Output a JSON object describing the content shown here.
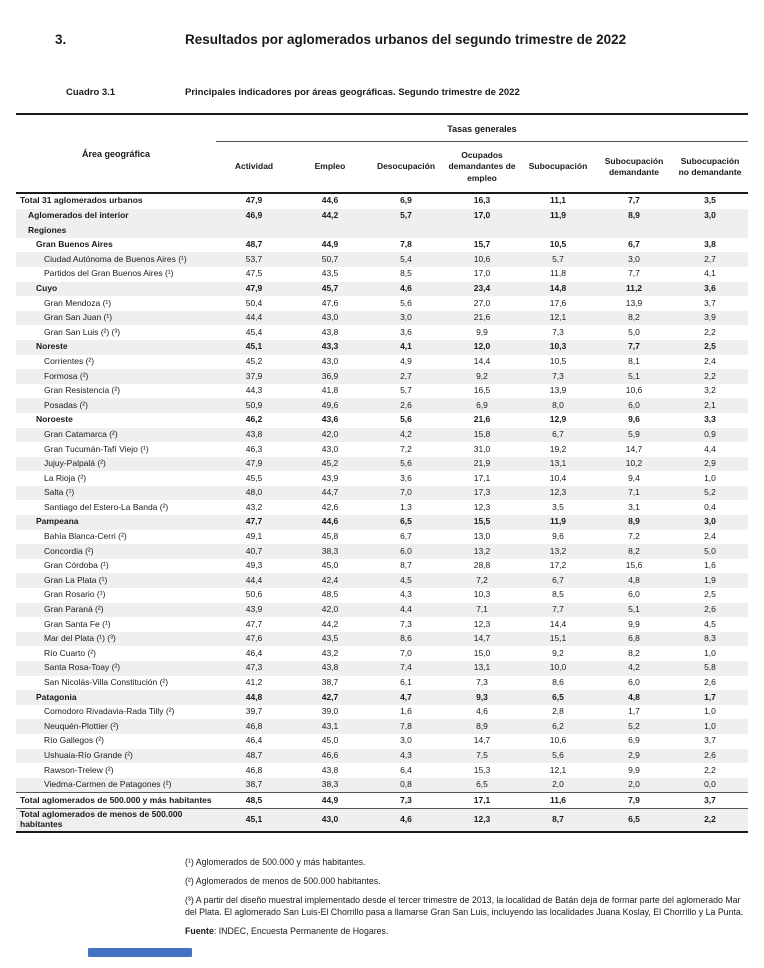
{
  "page": {
    "section_number": "3.",
    "title": "Resultados por aglomerados urbanos del segundo trimestre de 2022",
    "table_label": "Cuadro 3.1",
    "table_title": "Principales indicadores por áreas geográficas. Segundo trimestre de 2022"
  },
  "table": {
    "area_header": "Área geográfica",
    "group_header": "Tasas generales",
    "columns": [
      "Actividad",
      "Empleo",
      "Desocupación",
      "Ocupados demandantes de empleo",
      "Subocupación",
      "Subocupación demandante",
      "Subocupación no demandante"
    ],
    "rows": [
      {
        "label": "Total 31 aglomerados urbanos",
        "level": 0,
        "bold": true,
        "values": [
          "47,9",
          "44,6",
          "6,9",
          "16,3",
          "11,1",
          "7,7",
          "3,5"
        ]
      },
      {
        "label": "Aglomerados del interior",
        "level": 1,
        "bold": true,
        "values": [
          "46,9",
          "44,2",
          "5,7",
          "17,0",
          "11,9",
          "8,9",
          "3,0"
        ]
      },
      {
        "label": "Regiones",
        "level": 1,
        "bold": true,
        "values": [
          "",
          "",
          "",
          "",
          "",
          "",
          ""
        ]
      },
      {
        "label": "Gran Buenos Aires",
        "level": 2,
        "bold": true,
        "values": [
          "48,7",
          "44,9",
          "7,8",
          "15,7",
          "10,5",
          "6,7",
          "3,8"
        ]
      },
      {
        "label": "Ciudad Autónoma de Buenos Aires (¹)",
        "level": 3,
        "bold": false,
        "values": [
          "53,7",
          "50,7",
          "5,4",
          "10,6",
          "5,7",
          "3,0",
          "2,7"
        ]
      },
      {
        "label": "Partidos del Gran Buenos Aires (¹)",
        "level": 3,
        "bold": false,
        "values": [
          "47,5",
          "43,5",
          "8,5",
          "17,0",
          "11,8",
          "7,7",
          "4,1"
        ]
      },
      {
        "label": "Cuyo",
        "level": 2,
        "bold": true,
        "values": [
          "47,9",
          "45,7",
          "4,6",
          "23,4",
          "14,8",
          "11,2",
          "3,6"
        ]
      },
      {
        "label": "Gran Mendoza (¹)",
        "level": 3,
        "bold": false,
        "values": [
          "50,4",
          "47,6",
          "5,6",
          "27,0",
          "17,6",
          "13,9",
          "3,7"
        ]
      },
      {
        "label": "Gran San Juan (¹)",
        "level": 3,
        "bold": false,
        "values": [
          "44,4",
          "43,0",
          "3,0",
          "21,6",
          "12,1",
          "8,2",
          "3,9"
        ]
      },
      {
        "label": "Gran San Luis (²) (³)",
        "level": 3,
        "bold": false,
        "values": [
          "45,4",
          "43,8",
          "3,6",
          "9,9",
          "7,3",
          "5,0",
          "2,2"
        ]
      },
      {
        "label": "Noreste",
        "level": 2,
        "bold": true,
        "values": [
          "45,1",
          "43,3",
          "4,1",
          "12,0",
          "10,3",
          "7,7",
          "2,5"
        ]
      },
      {
        "label": "Corrientes (²)",
        "level": 3,
        "bold": false,
        "values": [
          "45,2",
          "43,0",
          "4,9",
          "14,4",
          "10,5",
          "8,1",
          "2,4"
        ]
      },
      {
        "label": "Formosa (²)",
        "level": 3,
        "bold": false,
        "values": [
          "37,9",
          "36,9",
          "2,7",
          "9,2",
          "7,3",
          "5,1",
          "2,2"
        ]
      },
      {
        "label": "Gran Resistencia (²)",
        "level": 3,
        "bold": false,
        "values": [
          "44,3",
          "41,8",
          "5,7",
          "16,5",
          "13,9",
          "10,6",
          "3,2"
        ]
      },
      {
        "label": "Posadas (²)",
        "level": 3,
        "bold": false,
        "values": [
          "50,9",
          "49,6",
          "2,6",
          "6,9",
          "8,0",
          "6,0",
          "2,1"
        ]
      },
      {
        "label": "Noroeste",
        "level": 2,
        "bold": true,
        "values": [
          "46,2",
          "43,6",
          "5,6",
          "21,6",
          "12,9",
          "9,6",
          "3,3"
        ]
      },
      {
        "label": "Gran Catamarca (²)",
        "level": 3,
        "bold": false,
        "values": [
          "43,8",
          "42,0",
          "4,2",
          "15,8",
          "6,7",
          "5,9",
          "0,9"
        ]
      },
      {
        "label": "Gran Tucumán-Tafí Viejo (¹)",
        "level": 3,
        "bold": false,
        "values": [
          "46,3",
          "43,0",
          "7,2",
          "31,0",
          "19,2",
          "14,7",
          "4,4"
        ]
      },
      {
        "label": "Jujuy-Palpalá (²)",
        "level": 3,
        "bold": false,
        "values": [
          "47,9",
          "45,2",
          "5,6",
          "21,9",
          "13,1",
          "10,2",
          "2,9"
        ]
      },
      {
        "label": "La Rioja (²)",
        "level": 3,
        "bold": false,
        "values": [
          "45,5",
          "43,9",
          "3,6",
          "17,1",
          "10,4",
          "9,4",
          "1,0"
        ]
      },
      {
        "label": "Salta (¹)",
        "level": 3,
        "bold": false,
        "values": [
          "48,0",
          "44,7",
          "7,0",
          "17,3",
          "12,3",
          "7,1",
          "5,2"
        ]
      },
      {
        "label": "Santiago del Estero-La Banda (²)",
        "level": 3,
        "bold": false,
        "values": [
          "43,2",
          "42,6",
          "1,3",
          "12,3",
          "3,5",
          "3,1",
          "0,4"
        ]
      },
      {
        "label": "Pampeana",
        "level": 2,
        "bold": true,
        "values": [
          "47,7",
          "44,6",
          "6,5",
          "15,5",
          "11,9",
          "8,9",
          "3,0"
        ]
      },
      {
        "label": "Bahía Blanca-Cerri (²)",
        "level": 3,
        "bold": false,
        "values": [
          "49,1",
          "45,8",
          "6,7",
          "13,0",
          "9,6",
          "7,2",
          "2,4"
        ]
      },
      {
        "label": "Concordia (²)",
        "level": 3,
        "bold": false,
        "values": [
          "40,7",
          "38,3",
          "6,0",
          "13,2",
          "13,2",
          "8,2",
          "5,0"
        ]
      },
      {
        "label": "Gran Córdoba (¹)",
        "level": 3,
        "bold": false,
        "values": [
          "49,3",
          "45,0",
          "8,7",
          "28,8",
          "17,2",
          "15,6",
          "1,6"
        ]
      },
      {
        "label": "Gran La Plata (¹)",
        "level": 3,
        "bold": false,
        "values": [
          "44,4",
          "42,4",
          "4,5",
          "7,2",
          "6,7",
          "4,8",
          "1,9"
        ]
      },
      {
        "label": "Gran Rosario (¹)",
        "level": 3,
        "bold": false,
        "values": [
          "50,6",
          "48,5",
          "4,3",
          "10,3",
          "8,5",
          "6,0",
          "2,5"
        ]
      },
      {
        "label": "Gran Paraná (²)",
        "level": 3,
        "bold": false,
        "values": [
          "43,9",
          "42,0",
          "4,4",
          "7,1",
          "7,7",
          "5,1",
          "2,6"
        ]
      },
      {
        "label": "Gran Santa Fe (¹)",
        "level": 3,
        "bold": false,
        "values": [
          "47,7",
          "44,2",
          "7,3",
          "12,3",
          "14,4",
          "9,9",
          "4,5"
        ]
      },
      {
        "label": "Mar del Plata (¹) (³)",
        "level": 3,
        "bold": false,
        "values": [
          "47,6",
          "43,5",
          "8,6",
          "14,7",
          "15,1",
          "6,8",
          "8,3"
        ]
      },
      {
        "label": "Río Cuarto (²)",
        "level": 3,
        "bold": false,
        "values": [
          "46,4",
          "43,2",
          "7,0",
          "15,0",
          "9,2",
          "8,2",
          "1,0"
        ]
      },
      {
        "label": "Santa Rosa-Toay (²)",
        "level": 3,
        "bold": false,
        "values": [
          "47,3",
          "43,8",
          "7,4",
          "13,1",
          "10,0",
          "4,2",
          "5,8"
        ]
      },
      {
        "label": "San Nicolás-Villa Constitución (²)",
        "level": 3,
        "bold": false,
        "values": [
          "41,2",
          "38,7",
          "6,1",
          "7,3",
          "8,6",
          "6,0",
          "2,6"
        ]
      },
      {
        "label": "Patagonia",
        "level": 2,
        "bold": true,
        "values": [
          "44,8",
          "42,7",
          "4,7",
          "9,3",
          "6,5",
          "4,8",
          "1,7"
        ]
      },
      {
        "label": "Comodoro Rivadavia-Rada Tilly (²)",
        "level": 3,
        "bold": false,
        "values": [
          "39,7",
          "39,0",
          "1,6",
          "4,6",
          "2,8",
          "1,7",
          "1,0"
        ]
      },
      {
        "label": "Neuquén-Plottier (²)",
        "level": 3,
        "bold": false,
        "values": [
          "46,8",
          "43,1",
          "7,8",
          "8,9",
          "6,2",
          "5,2",
          "1,0"
        ]
      },
      {
        "label": "Río Gallegos (²)",
        "level": 3,
        "bold": false,
        "values": [
          "46,4",
          "45,0",
          "3,0",
          "14,7",
          "10,6",
          "6,9",
          "3,7"
        ]
      },
      {
        "label": "Ushuaia-Río Grande (²)",
        "level": 3,
        "bold": false,
        "values": [
          "48,7",
          "46,6",
          "4,3",
          "7,5",
          "5,6",
          "2,9",
          "2,6"
        ]
      },
      {
        "label": "Rawson-Trelew (²)",
        "level": 3,
        "bold": false,
        "values": [
          "46,8",
          "43,8",
          "6,4",
          "15,3",
          "12,1",
          "9,9",
          "2,2"
        ]
      },
      {
        "label": "Viedma-Carmen de Patagones (²)",
        "level": 3,
        "bold": false,
        "values": [
          "38,7",
          "38,3",
          "0,8",
          "6,5",
          "2,0",
          "2,0",
          "0,0"
        ]
      },
      {
        "label": "Total aglomerados de 500.000 y más habitantes",
        "level": 0,
        "bold": true,
        "values": [
          "48,5",
          "44,9",
          "7,3",
          "17,1",
          "11,6",
          "7,9",
          "3,7"
        ]
      },
      {
        "label": "Total aglomerados de menos de 500.000 habitantes",
        "level": 0,
        "bold": true,
        "values": [
          "45,1",
          "43,0",
          "4,6",
          "12,3",
          "8,7",
          "6,5",
          "2,2"
        ]
      }
    ]
  },
  "footnotes": [
    "(¹) Aglomerados de 500.000 y más habitantes.",
    "(²) Aglomerados de menos de 500.000 habitantes.",
    "(³) A partir del diseño muestral implementado desde el tercer trimestre de 2013, la localidad de Batán deja de formar parte del aglomerado Mar del Plata. El aglomerado San Luis-El Chorrillo pasa a llamarse Gran San Luis, incluyendo las localidades Juana Koslay, El Chorrillo y La Punta."
  ],
  "source": {
    "label": "Fuente",
    "text": ": INDEC, Encuesta Permanente de Hogares."
  },
  "footer": {
    "accent_color": "#4472c4"
  }
}
